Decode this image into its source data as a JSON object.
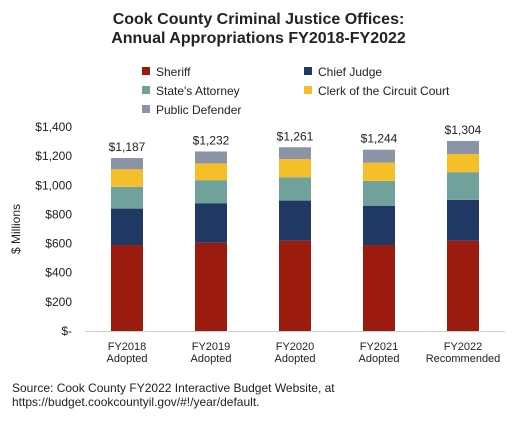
{
  "chart_data": {
    "type": "bar",
    "stacked": true,
    "title": "Cook County Criminal Justice Offices:",
    "subtitle": "Annual Appropriations FY2018-FY2022",
    "ylabel": "$ Millions",
    "xlabel": "",
    "ylim": [
      0,
      1400
    ],
    "yticks": [
      0,
      200,
      400,
      600,
      800,
      1000,
      1200,
      1400
    ],
    "ytick_labels": [
      "$-",
      "$200",
      "$400",
      "$600",
      "$800",
      "$1,000",
      "$1,200",
      "$1,400"
    ],
    "categories": [
      [
        "FY2018",
        "Adopted"
      ],
      [
        "FY2019",
        "Adopted"
      ],
      [
        "FY2020",
        "Adopted"
      ],
      [
        "FY2021",
        "Adopted"
      ],
      [
        "FY2022",
        "Recommended"
      ]
    ],
    "totals": [
      1187,
      1232,
      1261,
      1244,
      1304
    ],
    "total_labels": [
      "$1,187",
      "$1,232",
      "$1,261",
      "$1,244",
      "$1,304"
    ],
    "series": [
      {
        "name": "Sheriff",
        "color": "#9b1c0e",
        "values": [
          590,
          605,
          620,
          590,
          620
        ]
      },
      {
        "name": "Chief Judge",
        "color": "#1f3864",
        "values": [
          250,
          270,
          275,
          270,
          280
        ]
      },
      {
        "name": "State's Attorney",
        "color": "#70a29b",
        "values": [
          150,
          160,
          160,
          170,
          190
        ]
      },
      {
        "name": "Clerk of the Circuit Court",
        "color": "#f5bf2a",
        "values": [
          120,
          115,
          125,
          125,
          125
        ]
      },
      {
        "name": "Public Defender",
        "color": "#8a94a6",
        "values": [
          77,
          82,
          81,
          89,
          89
        ]
      }
    ],
    "grid": false,
    "legend_position": "top"
  },
  "source": {
    "line1": "Source: Cook County FY2022 Interactive Budget Website, at",
    "line2": "https://budget.cookcountyil.gov/#!/year/default."
  }
}
